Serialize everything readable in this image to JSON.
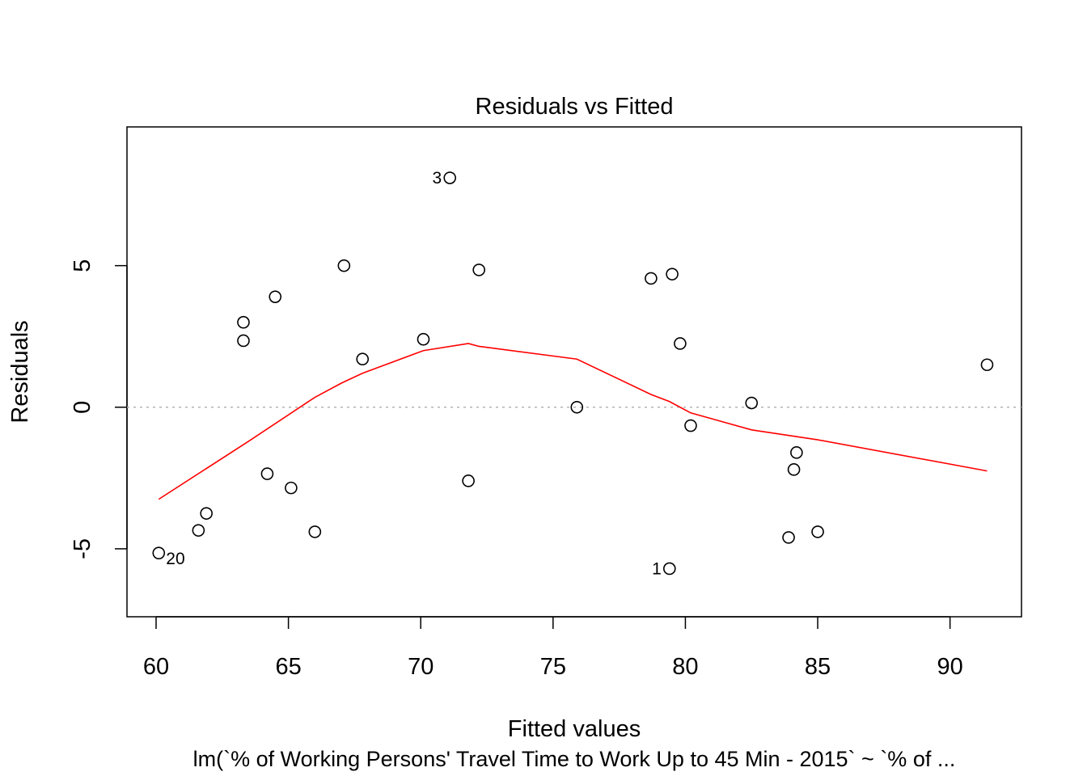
{
  "chart_data": {
    "type": "scatter",
    "title": "Residuals vs Fitted",
    "xlabel": "Fitted values",
    "ylabel": "Residuals",
    "subtitle": "lm(`% of Working Persons' Travel Time to Work Up to 45 Min - 2015` ~ `% of  ...",
    "xlim": [
      58.9,
      92.7
    ],
    "ylim": [
      -7.4,
      9.9
    ],
    "xticks": [
      60,
      65,
      70,
      75,
      80,
      85,
      90
    ],
    "yticks": [
      -5,
      0,
      5
    ],
    "grid": false,
    "zero_line": {
      "y": 0,
      "style": "dotted",
      "color": "#b3b3b3"
    },
    "points": [
      {
        "x": 60.1,
        "y": -5.15,
        "label": "20"
      },
      {
        "x": 61.6,
        "y": -4.35
      },
      {
        "x": 61.9,
        "y": -3.75
      },
      {
        "x": 63.3,
        "y": 2.35
      },
      {
        "x": 63.3,
        "y": 3.0
      },
      {
        "x": 64.2,
        "y": -2.35
      },
      {
        "x": 64.5,
        "y": 3.9
      },
      {
        "x": 65.1,
        "y": -2.85
      },
      {
        "x": 66.0,
        "y": -4.4
      },
      {
        "x": 67.1,
        "y": 5.0
      },
      {
        "x": 67.8,
        "y": 1.7
      },
      {
        "x": 70.1,
        "y": 2.4
      },
      {
        "x": 71.1,
        "y": 8.1,
        "label": "3"
      },
      {
        "x": 71.8,
        "y": -2.6
      },
      {
        "x": 72.2,
        "y": 4.85
      },
      {
        "x": 75.9,
        "y": 0.0
      },
      {
        "x": 78.7,
        "y": 4.55
      },
      {
        "x": 79.4,
        "y": -5.7,
        "label": "1"
      },
      {
        "x": 79.5,
        "y": 4.7
      },
      {
        "x": 79.8,
        "y": 2.25
      },
      {
        "x": 80.2,
        "y": -0.65
      },
      {
        "x": 82.5,
        "y": 0.15
      },
      {
        "x": 83.9,
        "y": -4.6
      },
      {
        "x": 84.1,
        "y": -2.2
      },
      {
        "x": 84.2,
        "y": -1.6
      },
      {
        "x": 85.0,
        "y": -4.4
      },
      {
        "x": 91.4,
        "y": 1.5
      }
    ],
    "smooth_line": {
      "color": "#ff0000",
      "x": [
        60.1,
        63.5,
        66.0,
        67.0,
        67.8,
        70.1,
        71.8,
        72.2,
        75.9,
        78.7,
        79.4,
        80.2,
        82.5,
        85.0,
        91.4
      ],
      "y": [
        -3.25,
        -1.2,
        0.35,
        0.85,
        1.2,
        2.0,
        2.25,
        2.15,
        1.7,
        0.45,
        0.2,
        -0.2,
        -0.8,
        -1.15,
        -2.25
      ]
    }
  }
}
